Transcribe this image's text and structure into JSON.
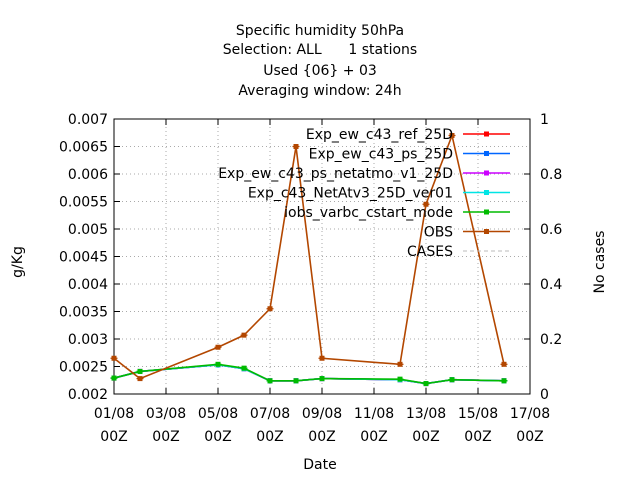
{
  "chart_data": {
    "type": "line",
    "title_lines": [
      "Specific humidity 50hPa",
      "Selection: ALL      1 stations",
      "Used {06} + 03",
      "Averaging window: 24h"
    ],
    "xlabel": "Date",
    "ylabel": "g/Kg",
    "y2label": "No cases",
    "x_ticks": [
      {
        "day": 1,
        "label": "01/08",
        "sub": "00Z"
      },
      {
        "day": 3,
        "label": "03/08",
        "sub": "00Z"
      },
      {
        "day": 5,
        "label": "05/08",
        "sub": "00Z"
      },
      {
        "day": 7,
        "label": "07/08",
        "sub": "00Z"
      },
      {
        "day": 9,
        "label": "09/08",
        "sub": "00Z"
      },
      {
        "day": 11,
        "label": "11/08",
        "sub": "00Z"
      },
      {
        "day": 13,
        "label": "13/08",
        "sub": "00Z"
      },
      {
        "day": 15,
        "label": "15/08",
        "sub": "00Z"
      },
      {
        "day": 17,
        "label": "17/08",
        "sub": "00Z"
      }
    ],
    "xlim": [
      1,
      17
    ],
    "ylim": [
      0.002,
      0.007
    ],
    "y_ticks": [
      "0.002",
      "0.0025",
      "0.003",
      "0.0035",
      "0.004",
      "0.0045",
      "0.005",
      "0.0055",
      "0.006",
      "0.0065",
      "0.007"
    ],
    "y2lim": [
      0,
      1
    ],
    "y2_ticks": [
      "0",
      "0.2",
      "0.4",
      "0.6",
      "0.8",
      "1"
    ],
    "grid": true,
    "legend_position": "top-right",
    "series": [
      {
        "name": "Exp_ew_c43_ref_25D",
        "color": "#ff0000",
        "axis": "y1",
        "x": [
          1,
          2,
          5,
          6,
          7,
          8,
          9,
          12,
          13,
          14,
          16
        ],
        "y": [
          0.00229,
          0.00241,
          0.00253,
          0.00246,
          0.00224,
          0.00224,
          0.00228,
          0.00226,
          0.00219,
          0.00226,
          0.00224
        ]
      },
      {
        "name": "Exp_ew_c43_ps_25D",
        "color": "#0066ff",
        "axis": "y1",
        "x": [
          1,
          2,
          5,
          6,
          7,
          8,
          9,
          12,
          13,
          14,
          16
        ],
        "y": [
          0.00229,
          0.00241,
          0.00253,
          0.00246,
          0.00224,
          0.00224,
          0.00228,
          0.00226,
          0.00219,
          0.00226,
          0.00224
        ]
      },
      {
        "name": "Exp_ew_c43_ps_netatmo_v1_25D",
        "color": "#cc00ff",
        "axis": "y1",
        "x": [
          1,
          2,
          5,
          6,
          7,
          8,
          9,
          12,
          13,
          14,
          16
        ],
        "y": [
          0.00229,
          0.00241,
          0.00253,
          0.00246,
          0.00224,
          0.00224,
          0.00228,
          0.00226,
          0.00219,
          0.00226,
          0.00224
        ]
      },
      {
        "name": "Exp_c43_NetAtv3_25D_ver01",
        "color": "#00e5e5",
        "axis": "y1",
        "x": [
          1,
          2,
          5,
          6,
          7,
          8,
          9,
          12,
          13,
          14,
          16
        ],
        "y": [
          0.00229,
          0.00241,
          0.00253,
          0.00246,
          0.00224,
          0.00224,
          0.00228,
          0.00226,
          0.00219,
          0.00226,
          0.00224
        ]
      },
      {
        "name": "iobs_varbc_cstart_mode",
        "color": "#00bb00",
        "axis": "y1",
        "x": [
          1,
          2,
          5,
          6,
          7,
          8,
          9,
          12,
          13,
          14,
          16
        ],
        "y": [
          0.00229,
          0.00241,
          0.00254,
          0.00247,
          0.00224,
          0.00224,
          0.00228,
          0.00227,
          0.00219,
          0.00226,
          0.00224
        ]
      },
      {
        "name": "OBS",
        "color": "#b34700",
        "axis": "y1",
        "x": [
          1,
          2,
          5,
          6,
          7,
          8,
          9,
          12,
          13,
          14,
          16
        ],
        "y": [
          0.00265,
          0.00228,
          0.00285,
          0.00307,
          0.00355,
          0.0065,
          0.00265,
          0.00254,
          0.00545,
          0.0067,
          0.00254
        ]
      },
      {
        "name": "CASES",
        "color": "#bbbbbb",
        "axis": "y2",
        "dashed": true,
        "x": [],
        "y": []
      }
    ]
  }
}
